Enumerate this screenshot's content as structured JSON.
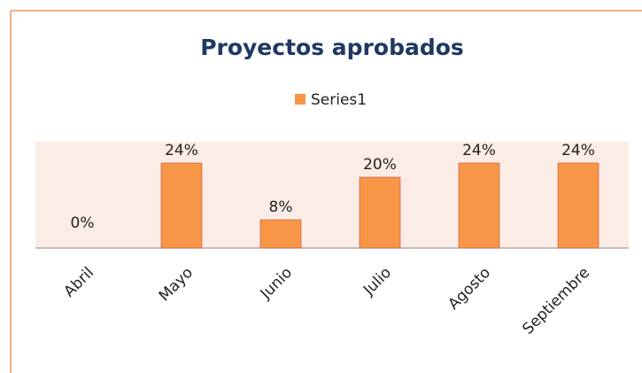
{
  "chart_data": {
    "type": "bar",
    "title": "Proyectos aprobados",
    "categories": [
      "Abril",
      "Mayo",
      "Junio",
      "Julio",
      "Agosto",
      "Septiembre"
    ],
    "series": [
      {
        "name": "Series1",
        "color": "#f79646",
        "values": [
          0,
          24,
          8,
          20,
          24,
          24
        ],
        "value_labels": [
          "0%",
          "24%",
          "8%",
          "20%",
          "24%",
          "24%"
        ]
      }
    ],
    "ylim": [
      0,
      30
    ],
    "legend": "top"
  }
}
